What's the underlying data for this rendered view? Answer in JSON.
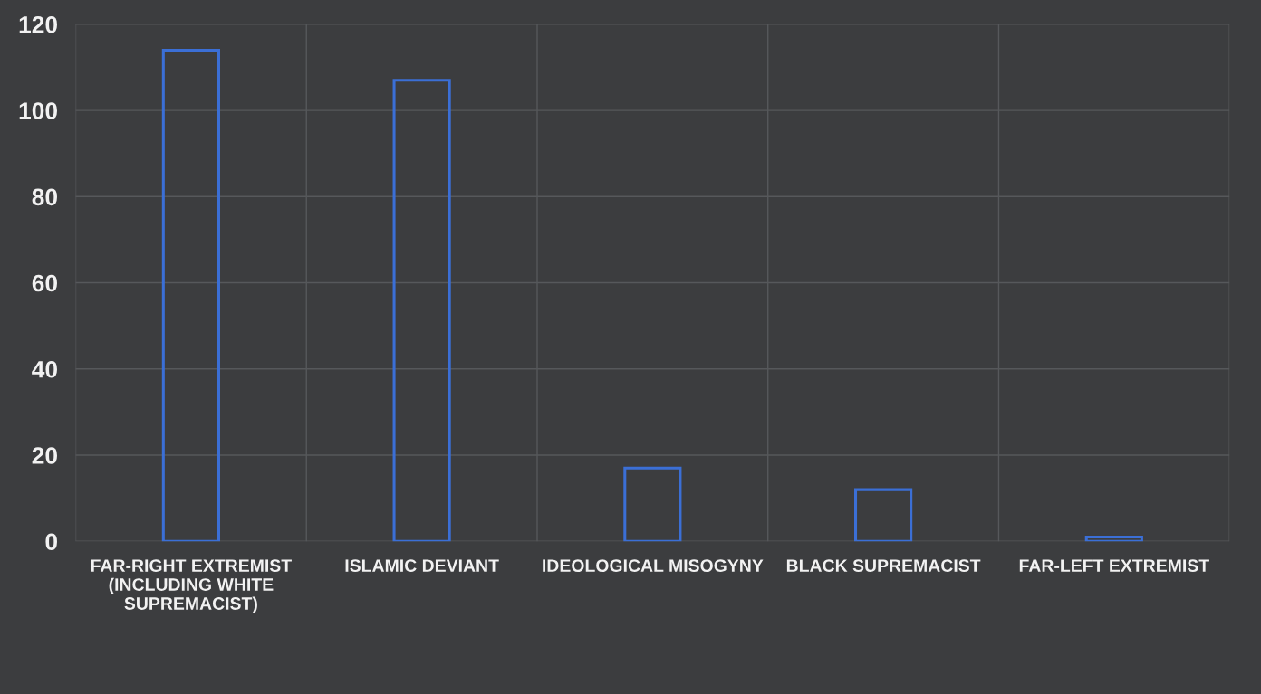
{
  "chart_data": {
    "type": "bar",
    "categories": [
      "FAR-RIGHT EXTREMIST\n(INCLUDING WHITE\nSUPREMACIST)",
      "ISLAMIC DEVIANT",
      "IDEOLOGICAL MISOGYNY",
      "BLACK SUPREMACIST",
      "FAR-LEFT EXTREMIST"
    ],
    "values": [
      114,
      107,
      17,
      12,
      1
    ],
    "color": "#3b6fd6",
    "ylim": [
      0,
      120
    ],
    "yticks": [
      0,
      20,
      40,
      60,
      80,
      100,
      120
    ],
    "grid": true
  }
}
